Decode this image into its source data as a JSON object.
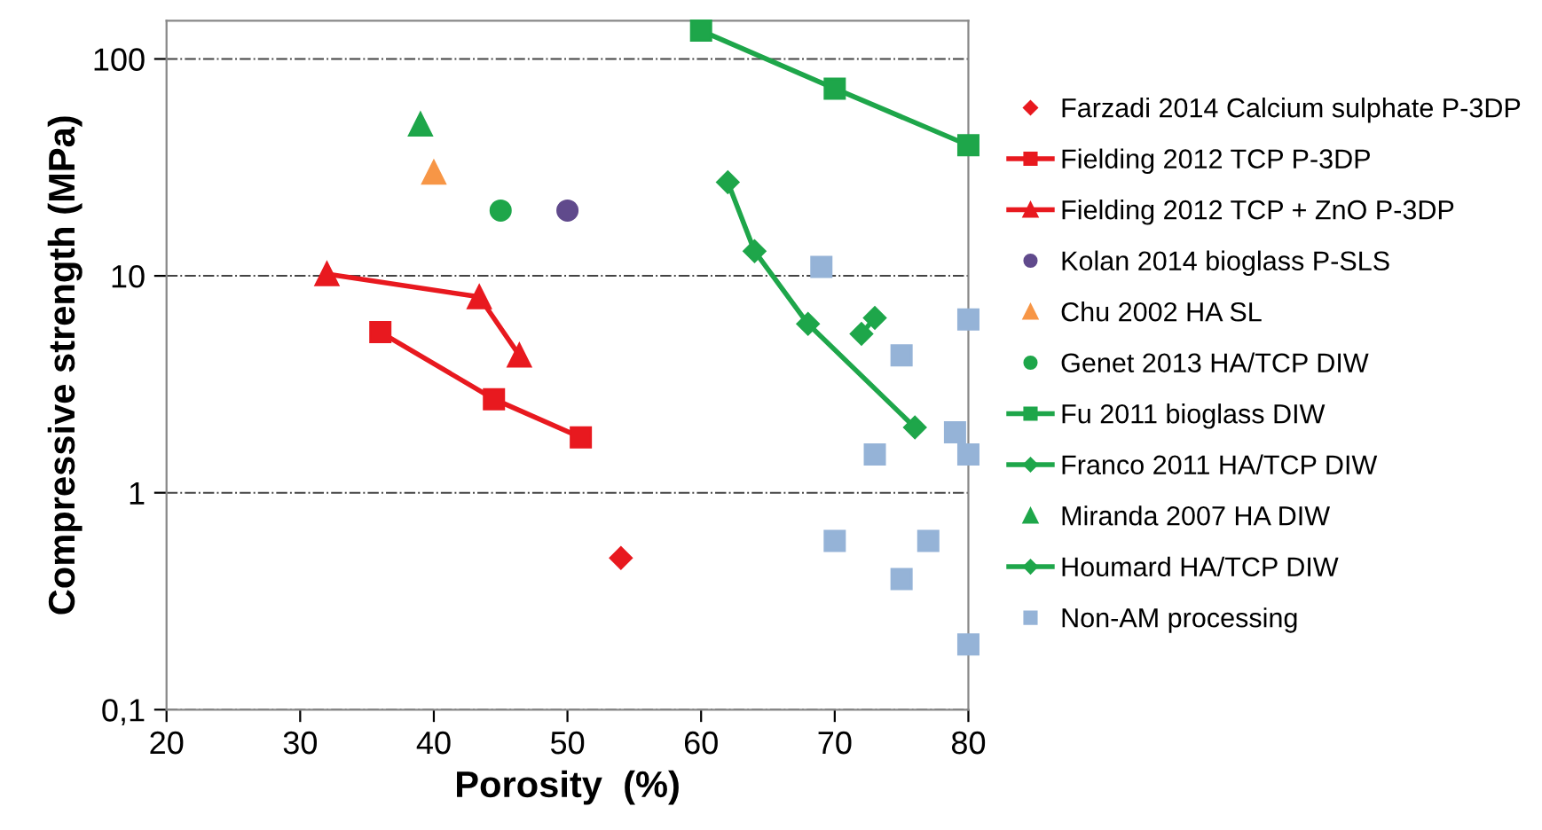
{
  "chart_data": {
    "type": "line",
    "xlabel": "Porosity  (%)",
    "ylabel": "Compressive strength (MPa)",
    "log": "y",
    "grid": "y",
    "legend": "right",
    "line_style": "solid",
    "xlim": [
      20,
      80
    ],
    "xticks": [
      20,
      30,
      40,
      50,
      60,
      70,
      80
    ],
    "ylim": [
      0.1,
      150
    ],
    "yticks": [
      {
        "value": 0.1,
        "label": "0,1"
      },
      1,
      10,
      100
    ],
    "series": [
      {
        "name": "Farzadi 2014 Calcium sulphate P-3DP",
        "type": "scatter",
        "color": "#e8191f",
        "marker": "diamond",
        "x": [
          54
        ],
        "values": [
          0.5
        ]
      },
      {
        "name": "Fielding 2012 TCP P-3DP",
        "color": "#e8191f",
        "marker": "square",
        "x": [
          36,
          44.5,
          51
        ],
        "values": [
          5.5,
          2.7,
          1.8
        ]
      },
      {
        "name": "Fielding 2012 TCP + ZnO P-3DP",
        "color": "#e8191f",
        "marker": "triangle",
        "x": [
          32,
          43.4,
          46.4
        ],
        "values": [
          10.2,
          8,
          4.3
        ]
      },
      {
        "name": "Kolan 2014 bioglass P-SLS",
        "type": "scatter",
        "color": "#604a8c",
        "marker": "circle",
        "x": [
          50
        ],
        "values": [
          20
        ]
      },
      {
        "name": "Chu 2002 HA SL",
        "type": "scatter",
        "color": "#f79646",
        "marker": "triangle",
        "x": [
          40
        ],
        "values": [
          30
        ]
      },
      {
        "name": "Genet 2013 HA/TCP DIW",
        "type": "scatter",
        "color": "#1ea64a",
        "marker": "circle",
        "x": [
          45
        ],
        "values": [
          20
        ]
      },
      {
        "name": "Fu 2011 bioglass DIW",
        "color": "#1ea64a",
        "marker": "square",
        "x": [
          60,
          70,
          80
        ],
        "values": [
          135,
          73,
          40
        ]
      },
      {
        "name": "Franco 2011 HA/TCP DIW",
        "color": "#1ea64a",
        "marker": "diamond",
        "x": [
          62,
          64,
          68,
          76
        ],
        "values": [
          27,
          13,
          6,
          2
        ]
      },
      {
        "name": "Miranda 2007 HA DIW",
        "type": "scatter",
        "color": "#1ea64a",
        "marker": "triangle",
        "x": [
          39
        ],
        "values": [
          50
        ]
      },
      {
        "name": "Houmard HA/TCP DIW",
        "color": "#1ea64a",
        "marker": "diamond",
        "x": [
          72,
          73
        ],
        "values": [
          5.4,
          6.4
        ]
      },
      {
        "name": "Non-AM processing",
        "type": "scatter",
        "color": "#95b3d7",
        "marker": "square",
        "x": [
          69,
          75,
          80,
          79,
          80,
          73,
          70,
          77,
          75,
          80
        ],
        "values": [
          11,
          4.3,
          6.3,
          1.9,
          1.5,
          1.5,
          0.6,
          0.6,
          0.4,
          0.2
        ]
      }
    ]
  }
}
